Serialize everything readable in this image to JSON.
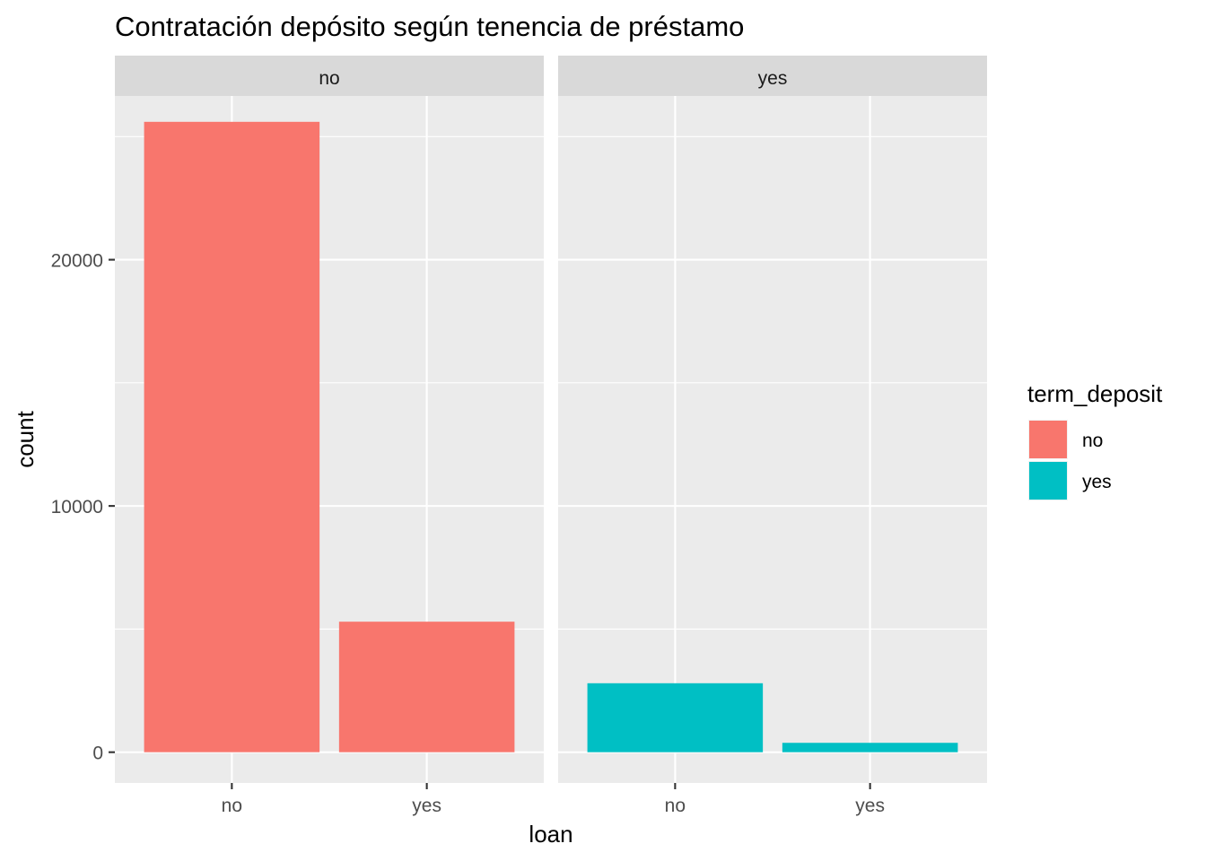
{
  "chart_data": {
    "type": "bar",
    "title": "Contratación depósito según tenencia de préstamo",
    "xlabel": "loan",
    "ylabel": "count",
    "ylim": [
      -1250,
      26650
    ],
    "yticks": [
      0,
      10000,
      20000
    ],
    "ytick_labels": [
      "0",
      "10000",
      "20000"
    ],
    "categories": [
      "no",
      "yes"
    ],
    "facet_variable": "term_deposit",
    "facets": [
      {
        "label": "no",
        "fill_level": "no",
        "values": [
          25600,
          5300
        ]
      },
      {
        "label": "yes",
        "fill_level": "yes",
        "values": [
          2800,
          380
        ]
      }
    ],
    "legend": {
      "title": "term_deposit",
      "position": "right",
      "entries": [
        {
          "label": "no",
          "color": "#F8766D"
        },
        {
          "label": "yes",
          "color": "#00BFC4"
        }
      ]
    },
    "grid": true,
    "colors": {
      "panel": "#EBEBEB",
      "strip": "#D9D9D9",
      "grid": "#FFFFFF",
      "no": "#F8766D",
      "yes": "#00BFC4"
    }
  }
}
